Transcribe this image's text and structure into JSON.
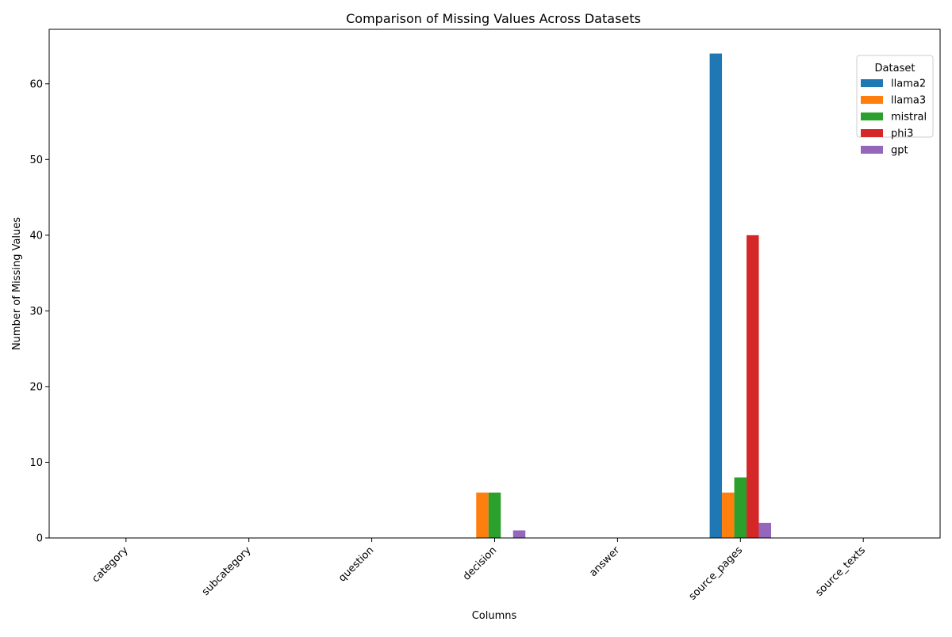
{
  "chart_data": {
    "type": "bar",
    "title": "Comparison of Missing Values Across Datasets",
    "xlabel": "Columns",
    "ylabel": "Number of Missing Values",
    "categories": [
      "category",
      "subcategory",
      "question",
      "decision",
      "answer",
      "source_pages",
      "source_texts"
    ],
    "series": [
      {
        "name": "llama2",
        "color": "#1f77b4",
        "values": [
          0,
          0,
          0,
          0,
          0,
          64,
          0
        ]
      },
      {
        "name": "llama3",
        "color": "#ff7f0e",
        "values": [
          0,
          0,
          0,
          6,
          0,
          6,
          0
        ]
      },
      {
        "name": "mistral",
        "color": "#2ca02c",
        "values": [
          0,
          0,
          0,
          6,
          0,
          8,
          0
        ]
      },
      {
        "name": "phi3",
        "color": "#d62728",
        "values": [
          0,
          0,
          0,
          0,
          0,
          40,
          0
        ]
      },
      {
        "name": "gpt",
        "color": "#9467bd",
        "values": [
          0,
          0,
          0,
          1,
          0,
          2,
          0
        ]
      }
    ],
    "ylim": [
      0,
      67.2
    ],
    "yticks": [
      0,
      10,
      20,
      30,
      40,
      50,
      60
    ],
    "grid": false,
    "legend": {
      "title": "Dataset",
      "position": "top-right"
    }
  }
}
